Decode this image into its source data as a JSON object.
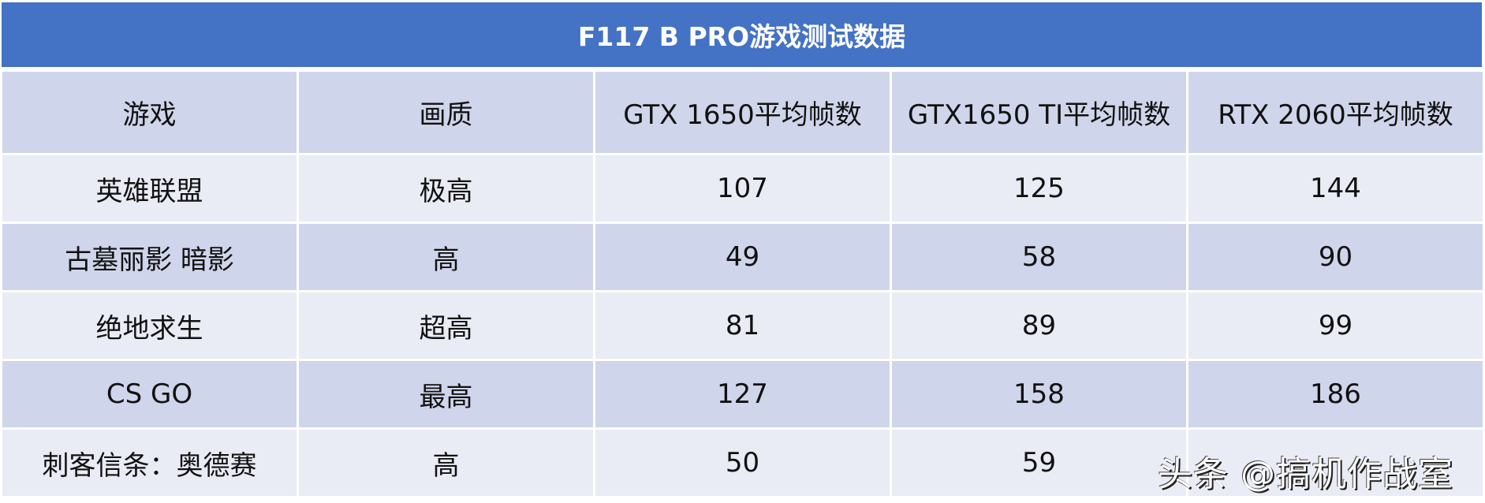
{
  "title": "F117 B PRO游戏测试数据",
  "colors": {
    "title_bg": "#4472C4",
    "header_bg": "#CFD5EA",
    "row_light": "#E9EBF5",
    "row_dark": "#CFD5EA"
  },
  "headers": [
    "游戏",
    "画质",
    "GTX 1650平均帧数",
    "GTX1650 TI平均帧数",
    "RTX 2060平均帧数"
  ],
  "rows": [
    [
      "英雄联盟",
      "极高",
      "107",
      "125",
      "144"
    ],
    [
      "古墓丽影 暗影",
      "高",
      "49",
      "58",
      "90"
    ],
    [
      "绝地求生",
      "超高",
      "81",
      "89",
      "99"
    ],
    [
      "CS GO",
      "最高",
      "127",
      "158",
      "186"
    ],
    [
      "刺客信条：奥德赛",
      "高",
      "50",
      "59",
      ""
    ]
  ],
  "watermark": "头条 @搞机作战室"
}
